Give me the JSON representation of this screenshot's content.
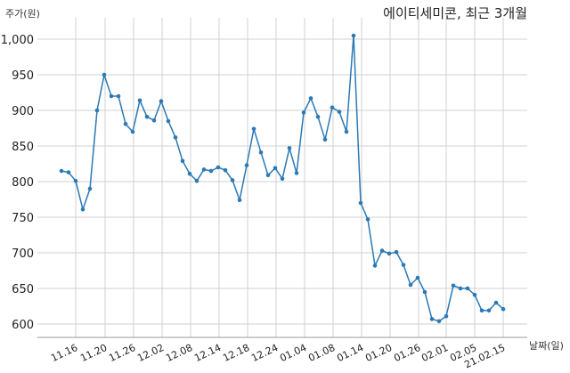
{
  "chart_data": {
    "type": "line",
    "title": "에이티세미콘, 최근 3개월",
    "xlabel": "날짜(일)",
    "ylabel": "주가(원)",
    "ylim": [
      585,
      1020
    ],
    "yticks": [
      600,
      650,
      700,
      750,
      800,
      850,
      900,
      950,
      1000
    ],
    "ytick_labels": [
      "600",
      "650",
      "700",
      "750",
      "800",
      "850",
      "900",
      "950",
      "1,000"
    ],
    "xtick_labels": [
      "11.16",
      "11.20",
      "11.26",
      "12.02",
      "12.08",
      "12.14",
      "12.18",
      "12.24",
      "01.04",
      "01.08",
      "01.14",
      "01.20",
      "01.26",
      "02.01",
      "02.05",
      "21.02.15"
    ],
    "grid": true,
    "legend": false,
    "line_color": "#2b79b5",
    "series": [
      {
        "name": "에이티세미콘",
        "values": [
          815,
          813,
          801,
          761,
          790,
          900,
          950,
          920,
          920,
          881,
          870,
          914,
          891,
          886,
          913,
          885,
          862,
          829,
          811,
          801,
          817,
          815,
          820,
          816,
          802,
          774,
          823,
          874,
          841,
          809,
          819,
          804,
          847,
          812,
          897,
          917,
          891,
          859,
          904,
          898,
          870,
          1005,
          770,
          747,
          682,
          703,
          699,
          701,
          683,
          655,
          665,
          645,
          607,
          604,
          611,
          654,
          650,
          650,
          641,
          619,
          619,
          630,
          621
        ]
      }
    ]
  }
}
